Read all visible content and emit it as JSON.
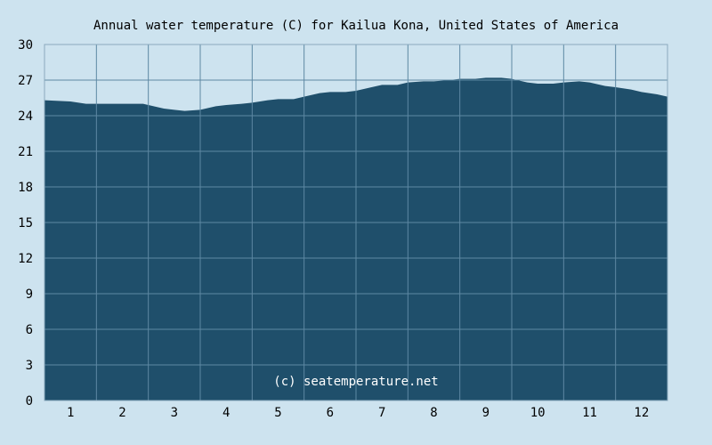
{
  "chart_data": {
    "type": "area",
    "title": "Annual water temperature (C) for Kailua Kona, United States of America",
    "xlabel": "",
    "ylabel": "",
    "categories": [
      "1",
      "2",
      "3",
      "4",
      "5",
      "6",
      "7",
      "8",
      "9",
      "10",
      "11",
      "12"
    ],
    "xlim": [
      0.5,
      12.5
    ],
    "ylim": [
      0,
      30
    ],
    "yticks": [
      0,
      3,
      6,
      9,
      12,
      15,
      18,
      21,
      24,
      27,
      30
    ],
    "grid": true,
    "legend": "none",
    "x": [
      0.5,
      1.0,
      1.3,
      1.5,
      2.0,
      2.4,
      2.5,
      2.8,
      3.0,
      3.2,
      3.5,
      3.8,
      4.0,
      4.3,
      4.5,
      4.8,
      5.0,
      5.3,
      5.5,
      5.8,
      6.0,
      6.3,
      6.5,
      6.8,
      7.0,
      7.3,
      7.5,
      7.8,
      8.0,
      8.3,
      8.5,
      8.8,
      9.0,
      9.3,
      9.5,
      9.8,
      10.0,
      10.3,
      10.5,
      10.8,
      11.0,
      11.3,
      11.5,
      11.8,
      12.0,
      12.3,
      12.5
    ],
    "values": [
      25.3,
      25.2,
      25.0,
      25.0,
      25.0,
      25.0,
      24.9,
      24.6,
      24.5,
      24.4,
      24.5,
      24.8,
      24.9,
      25.0,
      25.1,
      25.3,
      25.4,
      25.4,
      25.6,
      25.9,
      26.0,
      26.0,
      26.1,
      26.4,
      26.6,
      26.6,
      26.8,
      26.9,
      26.9,
      27.0,
      27.1,
      27.1,
      27.2,
      27.2,
      27.1,
      26.8,
      26.7,
      26.7,
      26.8,
      26.9,
      26.8,
      26.5,
      26.4,
      26.2,
      26.0,
      25.8,
      25.6
    ],
    "credit": "(c) seatemperature.net"
  },
  "colors": {
    "background": "#cde3ef",
    "fill": "#1f4f6b",
    "grid": "#5e88a3",
    "frame": "#8aa9bd"
  }
}
